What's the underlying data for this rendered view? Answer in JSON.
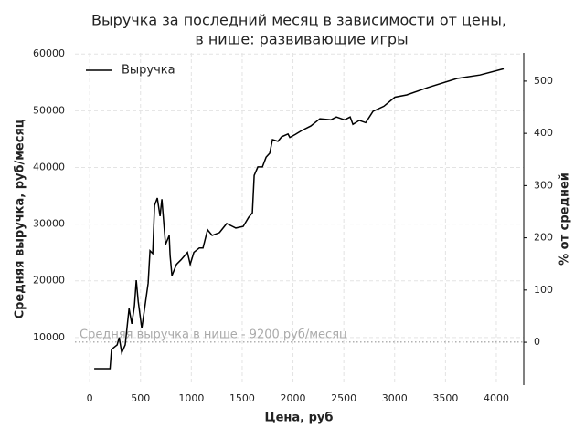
{
  "chart_data": {
    "type": "line",
    "title": [
      "Выручка за последний месяц в зависимости от цены,",
      "в нише: развивающие игры"
    ],
    "xlabel": "Цена, руб",
    "ylabel": "Средняя выручка, руб/месяц",
    "y2label": "% от средней",
    "x": [
      45,
      200,
      215,
      270,
      290,
      315,
      350,
      387,
      414,
      440,
      458,
      477,
      512,
      540,
      575,
      593,
      620,
      638,
      665,
      692,
      710,
      746,
      782,
      791,
      809,
      854,
      899,
      962,
      989,
      1025,
      1079,
      1115,
      1160,
      1205,
      1277,
      1348,
      1438,
      1510,
      1564,
      1600,
      1618,
      1654,
      1699,
      1735,
      1771,
      1798,
      1852,
      1888,
      1951,
      1969,
      2022,
      2085,
      2175,
      2265,
      2373,
      2427,
      2508,
      2562,
      2589,
      2652,
      2715,
      2787,
      2894,
      3002,
      3119,
      3326,
      3614,
      3838,
      4072
    ],
    "series": [
      {
        "name": "Выручка",
        "color": "#000000",
        "values": [
          4500,
          4500,
          7900,
          8700,
          10000,
          7300,
          8700,
          15100,
          12400,
          15600,
          20100,
          16400,
          11600,
          15100,
          19600,
          25300,
          24800,
          33300,
          34600,
          31400,
          34400,
          26400,
          28000,
          24500,
          20900,
          22900,
          23700,
          25000,
          22900,
          25000,
          25800,
          25800,
          29000,
          28000,
          28500,
          30100,
          29300,
          29600,
          31200,
          32000,
          38600,
          40100,
          40100,
          41800,
          42500,
          44900,
          44600,
          45400,
          45900,
          45300,
          45800,
          46500,
          47300,
          48600,
          48400,
          48900,
          48400,
          48900,
          47600,
          48300,
          47900,
          49900,
          50800,
          52400,
          52800,
          54100,
          55700,
          56300,
          57400
        ]
      }
    ],
    "xlim": [
      -145,
      4270
    ],
    "xticks": [
      0,
      500,
      1000,
      1500,
      2000,
      2500,
      3000,
      3500,
      4000
    ],
    "ylim": [
      1600,
      60200
    ],
    "yticks": [
      10000,
      20000,
      30000,
      40000,
      50000,
      60000
    ],
    "y2lim": [
      -82,
      554
    ],
    "y2ticks": [
      0,
      100,
      200,
      300,
      400,
      500
    ],
    "hline": {
      "value": 9200,
      "color": "#999999",
      "label": "Средняя выручка в нише - 9200 руб/месяц"
    },
    "grid": true,
    "legend": "upper-left"
  }
}
